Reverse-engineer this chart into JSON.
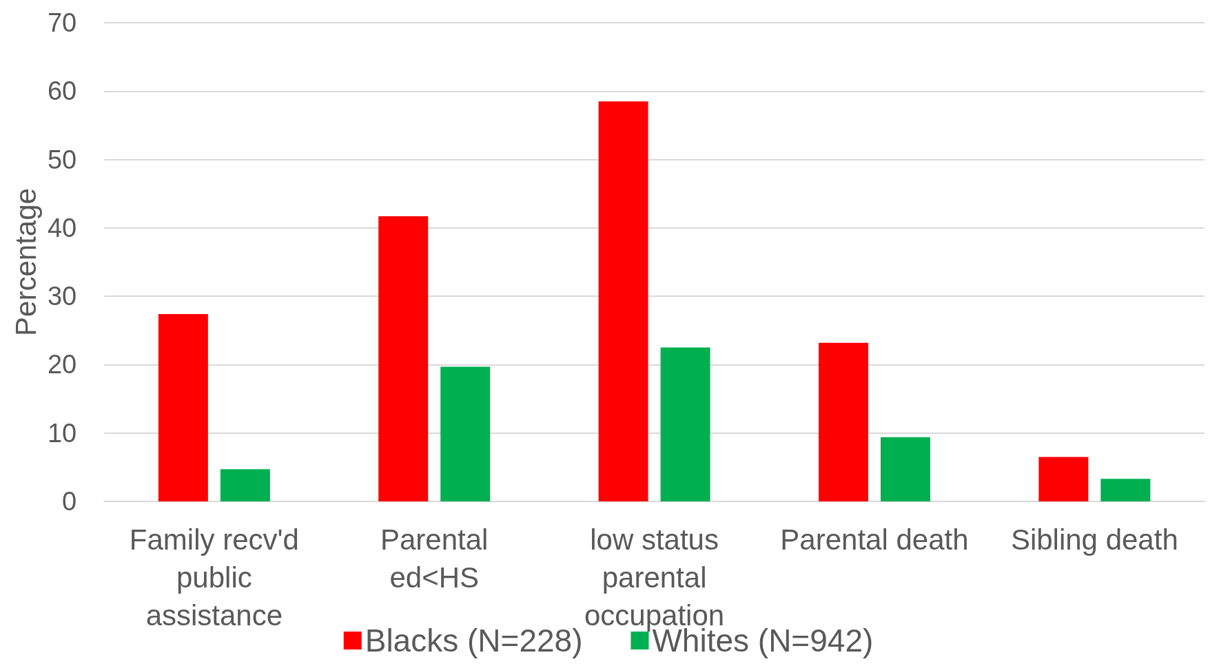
{
  "chart_data": {
    "type": "bar",
    "ylabel": "Percentage",
    "categories": [
      "Family recv'd\npublic\nassistance",
      "Parental\ned<HS",
      "low status\nparental\noccupation",
      "Parental death",
      "Sibling death"
    ],
    "series": [
      {
        "name": "Blacks (N=228)",
        "color": "#ff0000",
        "values": [
          27.4,
          41.7,
          58.5,
          23.2,
          6.5
        ]
      },
      {
        "name": "Whites (N=942)",
        "color": "#00b050",
        "values": [
          4.7,
          19.7,
          22.5,
          9.4,
          3.3
        ]
      }
    ],
    "ylim": [
      0,
      70
    ],
    "yticks": [
      0,
      10,
      20,
      30,
      40,
      50,
      60,
      70
    ],
    "grid": "y",
    "legend": "bottom"
  }
}
